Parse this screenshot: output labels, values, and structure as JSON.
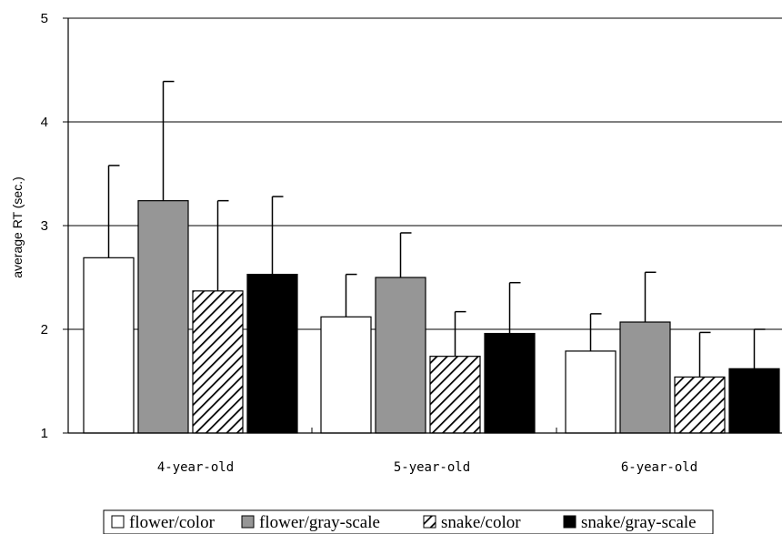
{
  "chart_data": {
    "type": "bar",
    "title": "",
    "xlabel": "",
    "ylabel": "average RT (sec.)",
    "ylim": [
      1,
      5
    ],
    "yticks": [
      "1",
      "2",
      "3",
      "4",
      "5"
    ],
    "grid": true,
    "legend_position": "bottom",
    "categories": [
      "4-year-old",
      "5-year-old",
      "6-year-old"
    ],
    "series": [
      {
        "name": "flower/color",
        "fill": "white",
        "values": [
          2.69,
          2.12,
          1.79
        ],
        "error": [
          0.89,
          0.41,
          0.36
        ]
      },
      {
        "name": "flower/gray-scale",
        "fill": "gray",
        "values": [
          3.24,
          2.5,
          2.07
        ],
        "error": [
          1.15,
          0.43,
          0.48
        ]
      },
      {
        "name": "snake/color",
        "fill": "hatch",
        "values": [
          2.37,
          1.74,
          1.54
        ],
        "error": [
          0.87,
          0.43,
          0.43
        ]
      },
      {
        "name": "snake/gray-scale",
        "fill": "black",
        "values": [
          2.53,
          1.96,
          1.62
        ],
        "error": [
          0.75,
          0.49,
          0.38
        ]
      }
    ],
    "colors": {
      "white": "#ffffff",
      "gray": "#969696",
      "black": "#000000",
      "hatch": "#000000"
    }
  }
}
